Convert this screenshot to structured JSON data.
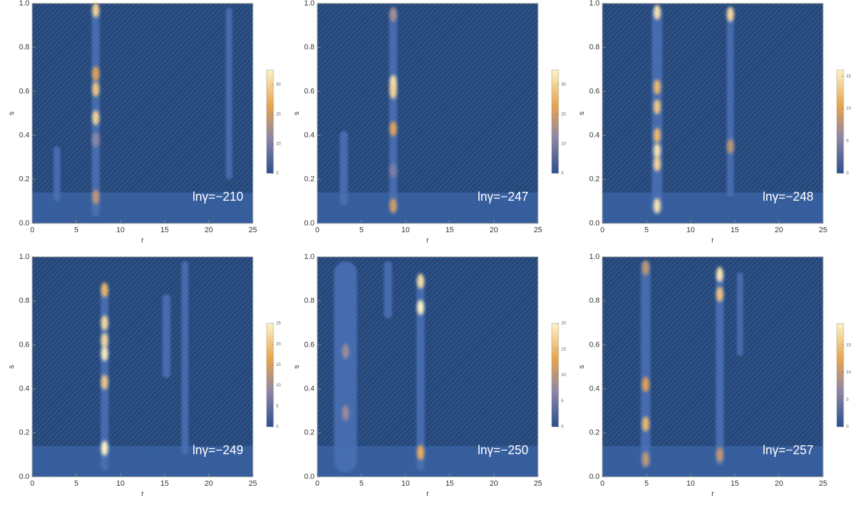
{
  "chart_data": [
    {
      "type": "heatmap",
      "annotation": "lnγ=−210",
      "x_label": "r",
      "y_label": "s",
      "xlim": [
        0,
        25
      ],
      "ylim": [
        0,
        1
      ],
      "xticks": [
        0,
        5,
        10,
        15,
        20,
        25
      ],
      "yticks": [
        {
          "value": 0,
          "label": "0.0"
        },
        0.2,
        0.4,
        0.6,
        0.8,
        {
          "value": 1,
          "label": "1.0"
        }
      ],
      "clim": [
        0,
        35
      ],
      "cticks": [
        0,
        10,
        20,
        30
      ],
      "ridges": [
        {
          "x": 7.2,
          "y0": 0.03,
          "y1": 0.98,
          "width": 0.9
        },
        {
          "x": 2.8,
          "y0": 0.1,
          "y1": 0.35,
          "width": 0.8
        },
        {
          "x": 22.3,
          "y0": 0.2,
          "y1": 0.98,
          "width": 0.7
        }
      ],
      "peaks": [
        {
          "x": 7.2,
          "y": 0.97,
          "value": 30
        },
        {
          "x": 7.2,
          "y": 0.68,
          "value": 22
        },
        {
          "x": 7.2,
          "y": 0.61,
          "value": 28
        },
        {
          "x": 7.2,
          "y": 0.48,
          "value": 30
        },
        {
          "x": 7.2,
          "y": 0.38,
          "value": 12
        },
        {
          "x": 7.2,
          "y": 0.12,
          "value": 18
        }
      ]
    },
    {
      "type": "heatmap",
      "annotation": "lnγ=−247",
      "x_label": "r",
      "y_label": "s",
      "xlim": [
        0,
        25
      ],
      "ylim": [
        0,
        1
      ],
      "xticks": [
        0,
        5,
        10,
        15,
        20,
        25
      ],
      "yticks": [
        {
          "value": 0,
          "label": "0.0"
        },
        0.2,
        0.4,
        0.6,
        0.8,
        {
          "value": 1,
          "label": "1.0"
        }
      ],
      "clim": [
        0,
        35
      ],
      "cticks": [
        0,
        10,
        20,
        30
      ],
      "ridges": [
        {
          "x": 8.6,
          "y0": 0.05,
          "y1": 0.97,
          "width": 0.9
        },
        {
          "x": 3.0,
          "y0": 0.08,
          "y1": 0.42,
          "width": 0.9
        }
      ],
      "peaks": [
        {
          "x": 8.6,
          "y": 0.95,
          "value": 15
        },
        {
          "x": 8.6,
          "y": 0.64,
          "value": 32
        },
        {
          "x": 8.6,
          "y": 0.6,
          "value": 30
        },
        {
          "x": 8.6,
          "y": 0.43,
          "value": 22
        },
        {
          "x": 8.6,
          "y": 0.24,
          "value": 10
        },
        {
          "x": 8.6,
          "y": 0.08,
          "value": 20
        }
      ]
    },
    {
      "type": "heatmap",
      "annotation": "lnγ=−248",
      "x_label": "r",
      "y_label": "s",
      "xlim": [
        0,
        25
      ],
      "ylim": [
        0,
        1
      ],
      "xticks": [
        0,
        5,
        10,
        15,
        20,
        25
      ],
      "yticks": [
        {
          "value": 0,
          "label": "0.0"
        },
        0.2,
        0.4,
        0.6,
        0.8,
        {
          "value": 1,
          "label": "1.0"
        }
      ],
      "clim": [
        0,
        16
      ],
      "cticks": [
        0,
        5,
        10,
        15
      ],
      "ridges": [
        {
          "x": 6.2,
          "y0": 0.04,
          "y1": 0.98,
          "width": 1.2
        },
        {
          "x": 14.5,
          "y0": 0.12,
          "y1": 0.98,
          "width": 0.8
        }
      ],
      "peaks": [
        {
          "x": 6.2,
          "y": 0.96,
          "value": 15
        },
        {
          "x": 6.2,
          "y": 0.62,
          "value": 12
        },
        {
          "x": 6.2,
          "y": 0.53,
          "value": 13
        },
        {
          "x": 6.2,
          "y": 0.4,
          "value": 12
        },
        {
          "x": 6.2,
          "y": 0.33,
          "value": 15
        },
        {
          "x": 6.2,
          "y": 0.27,
          "value": 14
        },
        {
          "x": 6.2,
          "y": 0.08,
          "value": 15
        },
        {
          "x": 14.5,
          "y": 0.95,
          "value": 14
        },
        {
          "x": 14.5,
          "y": 0.35,
          "value": 8
        }
      ]
    },
    {
      "type": "heatmap",
      "annotation": "lnγ=−249",
      "x_label": "r",
      "y_label": "s",
      "xlim": [
        0,
        25
      ],
      "ylim": [
        0,
        1
      ],
      "xticks": [
        0,
        5,
        10,
        15,
        20,
        25
      ],
      "yticks": [
        {
          "value": 0,
          "label": "0.0"
        },
        0.2,
        0.4,
        0.6,
        0.8,
        {
          "value": 1,
          "label": "1.0"
        }
      ],
      "clim": [
        0,
        25
      ],
      "cticks": [
        0,
        5,
        10,
        15,
        20,
        25
      ],
      "ridges": [
        {
          "x": 8.2,
          "y0": 0.03,
          "y1": 0.87,
          "width": 0.9
        },
        {
          "x": 17.3,
          "y0": 0.1,
          "y1": 0.98,
          "width": 0.8
        },
        {
          "x": 15.2,
          "y0": 0.45,
          "y1": 0.83,
          "width": 0.9
        }
      ],
      "peaks": [
        {
          "x": 8.2,
          "y": 0.85,
          "value": 18
        },
        {
          "x": 8.2,
          "y": 0.7,
          "value": 22
        },
        {
          "x": 8.2,
          "y": 0.62,
          "value": 22
        },
        {
          "x": 8.2,
          "y": 0.56,
          "value": 24
        },
        {
          "x": 8.2,
          "y": 0.43,
          "value": 20
        },
        {
          "x": 8.2,
          "y": 0.13,
          "value": 25
        }
      ]
    },
    {
      "type": "heatmap",
      "annotation": "lnγ=−250",
      "x_label": "r",
      "y_label": "s",
      "xlim": [
        0,
        25
      ],
      "ylim": [
        0,
        1
      ],
      "xticks": [
        0,
        5,
        10,
        15,
        20,
        25
      ],
      "yticks": [
        {
          "value": 0,
          "label": "0.0"
        },
        0.2,
        0.4,
        0.6,
        0.8,
        {
          "value": 1,
          "label": "1.0"
        }
      ],
      "clim": [
        0,
        20
      ],
      "cticks": [
        0,
        5,
        10,
        15,
        20
      ],
      "ridges": [
        {
          "x": 3.2,
          "y0": 0.02,
          "y1": 0.98,
          "width": 2.6
        },
        {
          "x": 11.7,
          "y0": 0.03,
          "y1": 0.91,
          "width": 0.9
        },
        {
          "x": 8.0,
          "y0": 0.72,
          "y1": 0.98,
          "width": 0.9
        }
      ],
      "peaks": [
        {
          "x": 11.7,
          "y": 0.89,
          "value": 18
        },
        {
          "x": 11.7,
          "y": 0.77,
          "value": 20
        },
        {
          "x": 11.7,
          "y": 0.11,
          "value": 14
        },
        {
          "x": 3.2,
          "y": 0.57,
          "value": 8
        },
        {
          "x": 3.2,
          "y": 0.29,
          "value": 8
        }
      ]
    },
    {
      "type": "heatmap",
      "annotation": "lnγ=−257",
      "x_label": "r",
      "y_label": "s",
      "xlim": [
        0,
        25
      ],
      "ylim": [
        0,
        1
      ],
      "xticks": [
        0,
        5,
        10,
        15,
        20,
        25
      ],
      "yticks": [
        {
          "value": 0,
          "label": "0.0"
        },
        0.2,
        0.4,
        0.6,
        0.8,
        {
          "value": 1,
          "label": "1.0"
        }
      ],
      "clim": [
        0,
        19
      ],
      "cticks": [
        0,
        5,
        10,
        15
      ],
      "ridges": [
        {
          "x": 4.9,
          "y0": 0.04,
          "y1": 0.98,
          "width": 1.1
        },
        {
          "x": 13.3,
          "y0": 0.05,
          "y1": 0.93,
          "width": 0.9
        },
        {
          "x": 15.6,
          "y0": 0.55,
          "y1": 0.93,
          "width": 0.7
        }
      ],
      "peaks": [
        {
          "x": 4.9,
          "y": 0.95,
          "value": 10
        },
        {
          "x": 4.9,
          "y": 0.42,
          "value": 12
        },
        {
          "x": 4.9,
          "y": 0.24,
          "value": 14
        },
        {
          "x": 4.9,
          "y": 0.08,
          "value": 10
        },
        {
          "x": 13.3,
          "y": 0.92,
          "value": 18
        },
        {
          "x": 13.3,
          "y": 0.83,
          "value": 15
        },
        {
          "x": 13.3,
          "y": 0.1,
          "value": 10
        }
      ]
    }
  ]
}
